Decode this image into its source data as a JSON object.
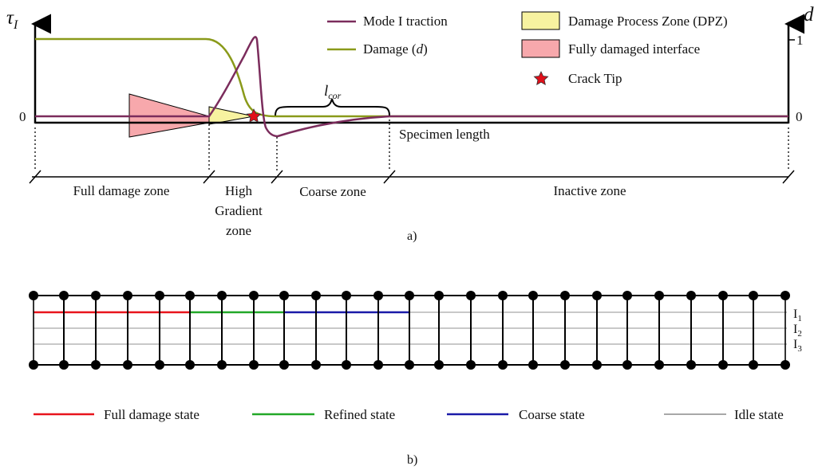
{
  "panel_a": {
    "left_axis": {
      "symbol": "τ",
      "subscript": "I",
      "zero": "0"
    },
    "right_axis": {
      "symbol": "d",
      "one": "1",
      "zero": "0"
    },
    "legend": {
      "traction": "Mode I traction",
      "damage_prefix": "Damage (",
      "damage_var": "d",
      "damage_suffix": ")",
      "dpz": "Damage Process Zone (DPZ)",
      "fully_damaged": "Fully damaged interface",
      "crack_tip": "Crack Tip"
    },
    "lcor": {
      "symbol": "l",
      "subscript": "cor"
    },
    "specimen_length": "Specimen length",
    "zones": {
      "full_damage": "Full damage zone",
      "high_gradient_1": "High",
      "high_gradient_2": "Gradient",
      "high_gradient_3": "zone",
      "coarse": "Coarse zone",
      "inactive": "Inactive zone"
    },
    "caption": "a)"
  },
  "panel_b": {
    "interface_labels": [
      {
        "main": "I",
        "sub": "1"
      },
      {
        "main": "I",
        "sub": "2"
      },
      {
        "main": "I",
        "sub": "3"
      }
    ],
    "legend": {
      "full_damage": "Full damage state",
      "refined": "Refined state",
      "coarse": "Coarse state",
      "idle": "Idle state"
    },
    "caption": "b)"
  },
  "colors": {
    "traction": "#7b2c5c",
    "damage": "#8a9a1a",
    "dpz": "#f7f2a0",
    "fully_damaged": "#f7a8ac",
    "crack_tip": "#e0101a",
    "full_damage_state": "#e8141c",
    "refined_state": "#22a828",
    "coarse_state": "#1a1aa8",
    "idle_state": "#a8a8a8"
  }
}
